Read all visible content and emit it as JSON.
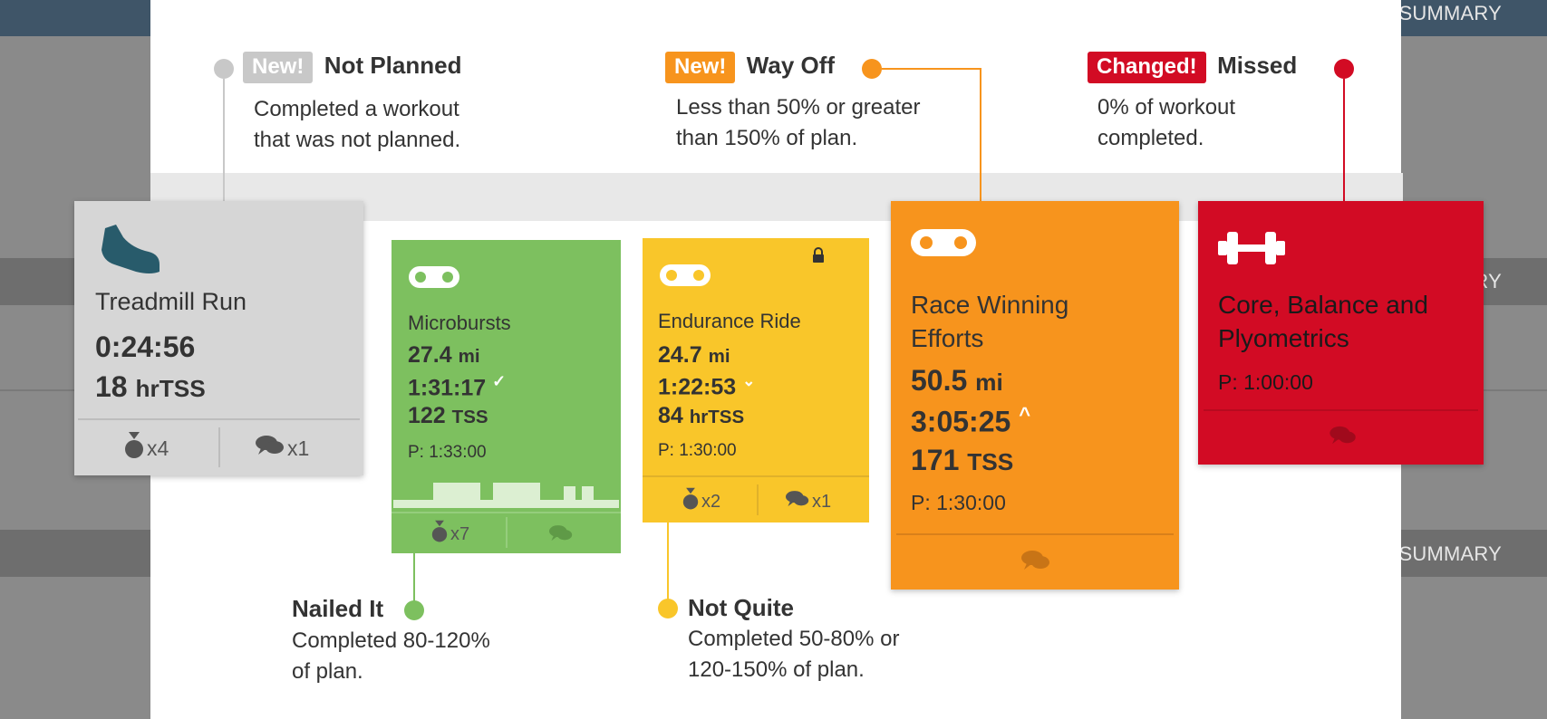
{
  "background": {
    "summary_top": "SUMMARY",
    "summary_mid": "RY",
    "summary_bottom": "SUMMARY"
  },
  "legend": {
    "not_planned": {
      "badge": "New!",
      "title": "Not Planned",
      "desc1": "Completed a workout",
      "desc2": "that was not planned.",
      "color": "#c8c8c8"
    },
    "way_off": {
      "badge": "New!",
      "title": "Way Off",
      "desc1": "Less than 50% or greater",
      "desc2": "than 150% of plan.",
      "color": "#f7941d"
    },
    "missed": {
      "badge": "Changed!",
      "title": "Missed",
      "desc1": "0% of workout",
      "desc2": "completed.",
      "color": "#d20b24"
    },
    "nailed_it": {
      "title": "Nailed It",
      "desc1": "Completed 80-120%",
      "desc2": "of plan.",
      "color": "#7dc05f"
    },
    "not_quite": {
      "title": "Not Quite",
      "desc1": "Completed 50-80% or",
      "desc2": "120-150% of plan.",
      "color": "#f9c62a"
    }
  },
  "cards": {
    "treadmill": {
      "icon": "shoe-icon",
      "title": "Treadmill Run",
      "duration": "0:24:56",
      "tss_value": "18",
      "tss_unit": "hrTSS",
      "medals": "x4",
      "comments": "x1"
    },
    "microbursts": {
      "icon": "bike-icon",
      "title": "Microbursts",
      "distance_value": "27.4",
      "distance_unit": "mi",
      "duration": "1:31:17",
      "tss_value": "122",
      "tss_unit": "TSS",
      "planned": "P: 1:33:00",
      "medals": "x7"
    },
    "endurance": {
      "icon": "bike-icon",
      "title": "Endurance Ride",
      "distance_value": "24.7",
      "distance_unit": "mi",
      "duration": "1:22:53",
      "tss_value": "84",
      "tss_unit": "hrTSS",
      "planned": "P: 1:30:00",
      "medals": "x2",
      "comments": "x1"
    },
    "race": {
      "icon": "bike-icon",
      "title1": "Race Winning",
      "title2": "Efforts",
      "distance_value": "50.5",
      "distance_unit": "mi",
      "duration": "3:05:25",
      "tss_value": "171",
      "tss_unit": "TSS",
      "planned": "P: 1:30:00"
    },
    "core": {
      "icon": "dumbbell-icon",
      "title1": "Core, Balance and",
      "title2": "Plyometrics",
      "planned": "P: 1:00:00"
    }
  }
}
